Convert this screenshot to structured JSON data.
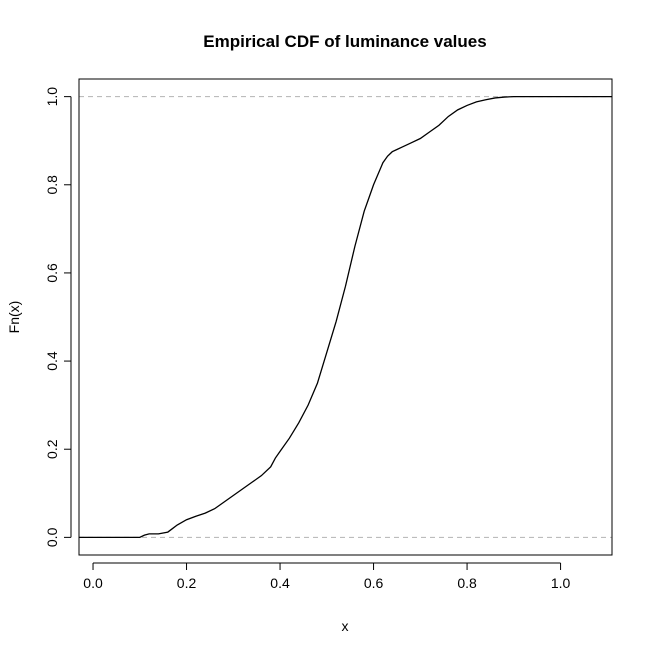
{
  "chart_data": {
    "type": "line",
    "title": "Empirical CDF of luminance values",
    "xlabel": "x",
    "ylabel": "Fn(x)",
    "xlim": [
      -0.03,
      1.11
    ],
    "ylim": [
      -0.04,
      1.04
    ],
    "x_ticks": [
      "0.0",
      "0.2",
      "0.4",
      "0.6",
      "0.8",
      "1.0"
    ],
    "y_ticks": [
      "0.0",
      "0.2",
      "0.4",
      "0.6",
      "0.8",
      "1.0"
    ],
    "reference_lines_y": [
      0,
      1
    ],
    "grid": false,
    "line_color": "#000000",
    "reference_line_color": "#b3b3b3",
    "series": [
      {
        "x": [
          -0.03,
          0.1,
          0.11,
          0.12,
          0.14,
          0.16,
          0.17,
          0.18,
          0.2,
          0.22,
          0.24,
          0.26,
          0.28,
          0.3,
          0.32,
          0.34,
          0.36,
          0.38,
          0.39,
          0.4,
          0.42,
          0.44,
          0.46,
          0.48,
          0.5,
          0.52,
          0.54,
          0.56,
          0.58,
          0.59,
          0.6,
          0.62,
          0.63,
          0.64,
          0.65,
          0.66,
          0.68,
          0.7,
          0.72,
          0.74,
          0.76,
          0.78,
          0.8,
          0.82,
          0.84,
          0.86,
          0.88,
          0.9,
          1.11
        ],
        "y": [
          0.0,
          0.0,
          0.005,
          0.008,
          0.008,
          0.012,
          0.02,
          0.028,
          0.04,
          0.048,
          0.055,
          0.065,
          0.08,
          0.095,
          0.11,
          0.125,
          0.14,
          0.16,
          0.18,
          0.195,
          0.225,
          0.26,
          0.3,
          0.35,
          0.42,
          0.49,
          0.57,
          0.66,
          0.74,
          0.77,
          0.8,
          0.85,
          0.865,
          0.875,
          0.88,
          0.885,
          0.895,
          0.905,
          0.92,
          0.935,
          0.955,
          0.97,
          0.98,
          0.988,
          0.993,
          0.997,
          0.999,
          1.0,
          1.0
        ]
      }
    ]
  }
}
